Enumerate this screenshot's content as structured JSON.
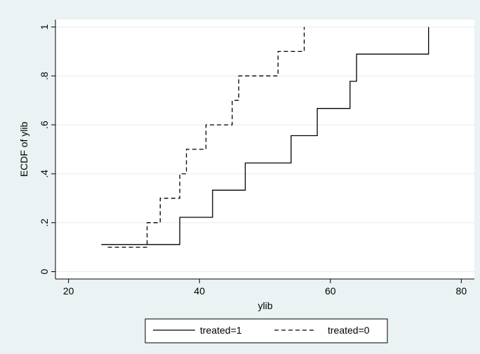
{
  "chart_data": {
    "type": "line",
    "step": true,
    "title": "",
    "xlabel": "ylib",
    "ylabel": "ECDF of ylib",
    "xlim": [
      18,
      82
    ],
    "ylim": [
      -0.03,
      1.03
    ],
    "x_ticks": [
      20,
      40,
      60,
      80
    ],
    "y_ticks": [
      0,
      0.2,
      0.4,
      0.6,
      0.8,
      1
    ],
    "y_tick_labels": [
      "0",
      ".2",
      ".4",
      ".6",
      ".8",
      "1"
    ],
    "grid": "horizontal",
    "legend_position": "bottom",
    "series": [
      {
        "name": "treated=1",
        "line_style": "solid",
        "color": "#000000",
        "points": [
          [
            25,
            0.111
          ],
          [
            37,
            0.111
          ],
          [
            37,
            0.222
          ],
          [
            42,
            0.222
          ],
          [
            42,
            0.333
          ],
          [
            47,
            0.333
          ],
          [
            47,
            0.444
          ],
          [
            54,
            0.444
          ],
          [
            54,
            0.556
          ],
          [
            58,
            0.556
          ],
          [
            58,
            0.667
          ],
          [
            63,
            0.667
          ],
          [
            63,
            0.778
          ],
          [
            64,
            0.778
          ],
          [
            64,
            0.889
          ],
          [
            75,
            0.889
          ],
          [
            75,
            1.0
          ]
        ]
      },
      {
        "name": "treated=0",
        "line_style": "dashed",
        "color": "#000000",
        "points": [
          [
            26,
            0.1
          ],
          [
            32,
            0.1
          ],
          [
            32,
            0.2
          ],
          [
            34,
            0.2
          ],
          [
            34,
            0.3
          ],
          [
            37,
            0.3
          ],
          [
            37,
            0.4
          ],
          [
            38,
            0.4
          ],
          [
            38,
            0.5
          ],
          [
            41,
            0.5
          ],
          [
            41,
            0.6
          ],
          [
            45,
            0.6
          ],
          [
            45,
            0.7
          ],
          [
            46,
            0.7
          ],
          [
            46,
            0.8
          ],
          [
            52,
            0.8
          ],
          [
            52,
            0.9
          ],
          [
            56,
            0.9
          ],
          [
            56,
            1.0
          ]
        ]
      }
    ]
  }
}
